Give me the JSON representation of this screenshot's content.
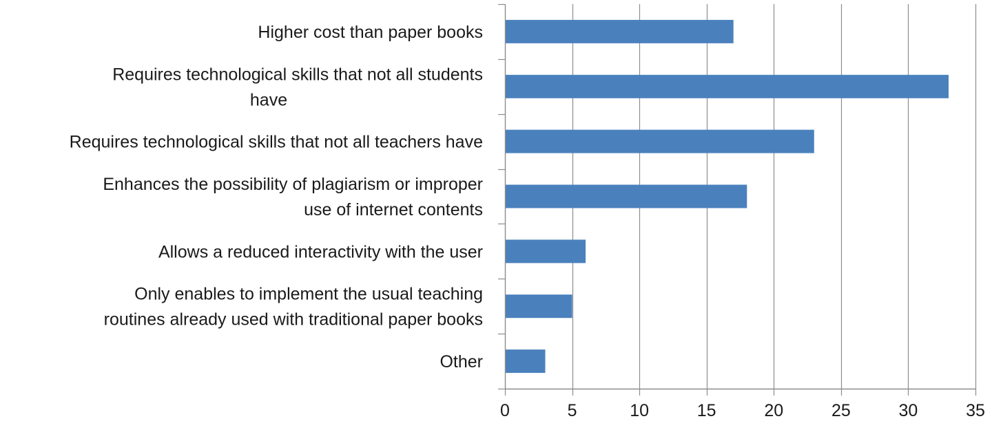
{
  "chart_data": {
    "type": "bar",
    "orientation": "horizontal",
    "categories": [
      "Higher cost than paper books",
      "Requires technological skills that not all students have",
      "Requires technological skills that not all teachers have",
      "Enhances the possibility of plagiarism or improper use of internet contents",
      "Allows a reduced interactivity with the user",
      "Only enables to implement the usual teaching routines already used with traditional paper books",
      "Other"
    ],
    "category_label_lines": [
      [
        "Higher cost than paper books"
      ],
      [
        "Requires technological skills that not all students",
        "have"
      ],
      [
        "Requires technological skills that not all teachers have"
      ],
      [
        "Enhances the possibility of plagiarism or improper",
        "use of internet contents"
      ],
      [
        "Allows a reduced interactivity with the user"
      ],
      [
        "Only enables to implement the usual teaching",
        "routines already used with traditional paper books"
      ],
      [
        "Other"
      ]
    ],
    "values": [
      17,
      33,
      23,
      18,
      6,
      5,
      3
    ],
    "xlim": [
      0,
      35
    ],
    "xticks": [
      0,
      5,
      10,
      15,
      20,
      25,
      30,
      35
    ],
    "title": "",
    "xlabel": "",
    "ylabel": "",
    "grid": "vertical",
    "legend": "none",
    "bar_color": "#4a81bd",
    "grid_color": "#8c8c8c",
    "axis_color": "#8c8c8c"
  }
}
